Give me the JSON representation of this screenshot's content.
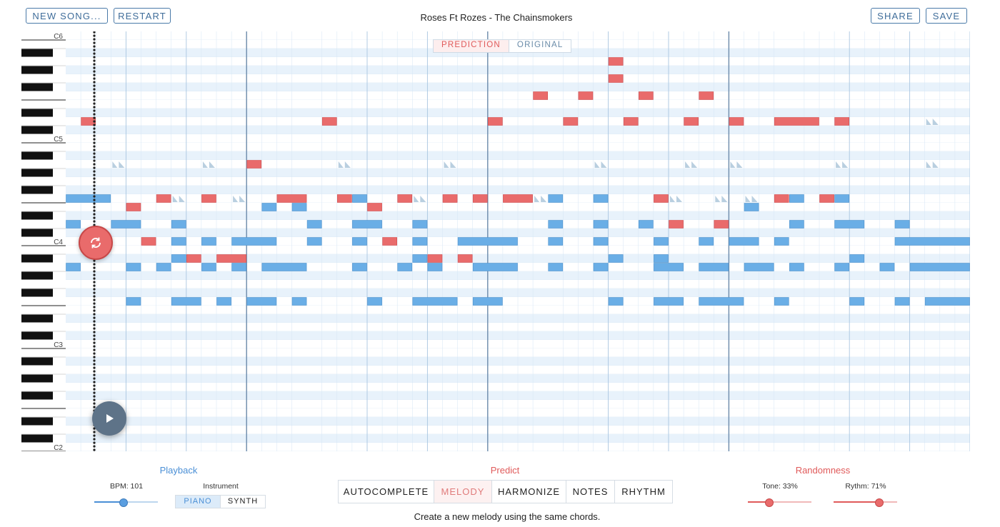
{
  "toolbar": {
    "new_song_label": "NEW SONG...",
    "restart_label": "RESTART",
    "share_label": "SHARE",
    "save_label": "SAVE"
  },
  "song_title": "Roses Ft Rozes - The Chainsmokers",
  "view_toggle": {
    "prediction_label": "PREDICTION",
    "original_label": "ORIGINAL",
    "selected": "PREDICTION"
  },
  "piano_roll": {
    "octave_labels": [
      "C6",
      "C5",
      "C4",
      "C3",
      "C2"
    ],
    "top_pitch": "C6",
    "bottom_pitch": "C2",
    "bars_visible": 7,
    "steps_per_bar": 16,
    "colors": {
      "prediction": "#e96b6b",
      "original": "#6aaee6",
      "ghost": "#b9cfe0",
      "light_row": "#e8f2fb",
      "white_row": "#ffffff",
      "bar_line": "#6d8bab",
      "beat_line": "#aac6e0"
    },
    "prediction_notes": [
      {
        "pitch": 74,
        "step": 1,
        "len": 1
      },
      {
        "pitch": 74,
        "step": 17,
        "len": 1
      },
      {
        "pitch": 74,
        "step": 28,
        "len": 1
      },
      {
        "pitch": 74,
        "step": 33,
        "len": 1
      },
      {
        "pitch": 74,
        "step": 37,
        "len": 1
      },
      {
        "pitch": 74,
        "step": 41,
        "len": 1
      },
      {
        "pitch": 74,
        "step": 44,
        "len": 1
      },
      {
        "pitch": 74,
        "step": 47,
        "len": 3
      },
      {
        "pitch": 74,
        "step": 51,
        "len": 1
      },
      {
        "pitch": 83,
        "step": 31,
        "len": 1
      },
      {
        "pitch": 81,
        "step": 36,
        "len": 1
      },
      {
        "pitch": 79,
        "step": 36,
        "len": 1
      },
      {
        "pitch": 77,
        "step": 31,
        "len": 1
      },
      {
        "pitch": 77,
        "step": 34,
        "len": 1
      },
      {
        "pitch": 77,
        "step": 38,
        "len": 1
      },
      {
        "pitch": 77,
        "step": 42,
        "len": 1
      },
      {
        "pitch": 69,
        "step": 12,
        "len": 1
      },
      {
        "pitch": 65,
        "step": 6,
        "len": 1
      },
      {
        "pitch": 65,
        "step": 9,
        "len": 1
      },
      {
        "pitch": 65,
        "step": 14,
        "len": 2
      },
      {
        "pitch": 65,
        "step": 18,
        "len": 1
      },
      {
        "pitch": 65,
        "step": 22,
        "len": 1
      },
      {
        "pitch": 65,
        "step": 25,
        "len": 1
      },
      {
        "pitch": 65,
        "step": 27,
        "len": 1
      },
      {
        "pitch": 65,
        "step": 29,
        "len": 2
      },
      {
        "pitch": 65,
        "step": 39,
        "len": 1
      },
      {
        "pitch": 65,
        "step": 47,
        "len": 1
      },
      {
        "pitch": 65,
        "step": 50,
        "len": 1
      },
      {
        "pitch": 64,
        "step": 4,
        "len": 1
      },
      {
        "pitch": 64,
        "step": 20,
        "len": 1
      },
      {
        "pitch": 62,
        "step": 40,
        "len": 1
      },
      {
        "pitch": 62,
        "step": 43,
        "len": 1
      },
      {
        "pitch": 60,
        "step": 5,
        "len": 1
      },
      {
        "pitch": 60,
        "step": 21,
        "len": 1
      },
      {
        "pitch": 58,
        "step": 8,
        "len": 1
      },
      {
        "pitch": 58,
        "step": 10,
        "len": 2
      },
      {
        "pitch": 58,
        "step": 24,
        "len": 1
      },
      {
        "pitch": 58,
        "step": 26,
        "len": 1
      }
    ],
    "original_notes": [
      {
        "pitch": 65,
        "step": 0,
        "len": 3
      },
      {
        "pitch": 65,
        "step": 19,
        "len": 1
      },
      {
        "pitch": 65,
        "step": 32,
        "len": 1
      },
      {
        "pitch": 65,
        "step": 35,
        "len": 1
      },
      {
        "pitch": 65,
        "step": 48,
        "len": 1
      },
      {
        "pitch": 65,
        "step": 51,
        "len": 1
      },
      {
        "pitch": 64,
        "step": 13,
        "len": 1
      },
      {
        "pitch": 64,
        "step": 15,
        "len": 1
      },
      {
        "pitch": 64,
        "step": 45,
        "len": 1
      },
      {
        "pitch": 62,
        "step": 0,
        "len": 1
      },
      {
        "pitch": 62,
        "step": 3,
        "len": 2
      },
      {
        "pitch": 62,
        "step": 7,
        "len": 1
      },
      {
        "pitch": 62,
        "step": 16,
        "len": 1
      },
      {
        "pitch": 62,
        "step": 19,
        "len": 2
      },
      {
        "pitch": 62,
        "step": 23,
        "len": 1
      },
      {
        "pitch": 62,
        "step": 32,
        "len": 1
      },
      {
        "pitch": 62,
        "step": 35,
        "len": 1
      },
      {
        "pitch": 62,
        "step": 38,
        "len": 1
      },
      {
        "pitch": 62,
        "step": 48,
        "len": 1
      },
      {
        "pitch": 62,
        "step": 51,
        "len": 2
      },
      {
        "pitch": 62,
        "step": 55,
        "len": 1
      },
      {
        "pitch": 60,
        "step": 7,
        "len": 1
      },
      {
        "pitch": 60,
        "step": 9,
        "len": 1
      },
      {
        "pitch": 60,
        "step": 11,
        "len": 3
      },
      {
        "pitch": 60,
        "step": 16,
        "len": 1
      },
      {
        "pitch": 60,
        "step": 19,
        "len": 1
      },
      {
        "pitch": 60,
        "step": 23,
        "len": 1
      },
      {
        "pitch": 60,
        "step": 26,
        "len": 4
      },
      {
        "pitch": 60,
        "step": 32,
        "len": 1
      },
      {
        "pitch": 60,
        "step": 35,
        "len": 1
      },
      {
        "pitch": 60,
        "step": 39,
        "len": 1
      },
      {
        "pitch": 60,
        "step": 42,
        "len": 1
      },
      {
        "pitch": 60,
        "step": 44,
        "len": 2
      },
      {
        "pitch": 60,
        "step": 47,
        "len": 1
      },
      {
        "pitch": 60,
        "step": 55,
        "len": 5
      },
      {
        "pitch": 58,
        "step": 7,
        "len": 1
      },
      {
        "pitch": 58,
        "step": 23,
        "len": 1
      },
      {
        "pitch": 58,
        "step": 36,
        "len": 1
      },
      {
        "pitch": 58,
        "step": 39,
        "len": 1
      },
      {
        "pitch": 58,
        "step": 52,
        "len": 1
      },
      {
        "pitch": 57,
        "step": 0,
        "len": 1
      },
      {
        "pitch": 57,
        "step": 4,
        "len": 1
      },
      {
        "pitch": 57,
        "step": 6,
        "len": 1
      },
      {
        "pitch": 57,
        "step": 9,
        "len": 1
      },
      {
        "pitch": 57,
        "step": 11,
        "len": 1
      },
      {
        "pitch": 57,
        "step": 13,
        "len": 3
      },
      {
        "pitch": 57,
        "step": 19,
        "len": 1
      },
      {
        "pitch": 57,
        "step": 22,
        "len": 1
      },
      {
        "pitch": 57,
        "step": 24,
        "len": 1
      },
      {
        "pitch": 57,
        "step": 27,
        "len": 3
      },
      {
        "pitch": 57,
        "step": 32,
        "len": 1
      },
      {
        "pitch": 57,
        "step": 35,
        "len": 1
      },
      {
        "pitch": 57,
        "step": 39,
        "len": 2
      },
      {
        "pitch": 57,
        "step": 42,
        "len": 2
      },
      {
        "pitch": 57,
        "step": 45,
        "len": 2
      },
      {
        "pitch": 57,
        "step": 48,
        "len": 1
      },
      {
        "pitch": 57,
        "step": 51,
        "len": 1
      },
      {
        "pitch": 57,
        "step": 54,
        "len": 1
      },
      {
        "pitch": 57,
        "step": 56,
        "len": 4
      },
      {
        "pitch": 53,
        "step": 4,
        "len": 1
      },
      {
        "pitch": 53,
        "step": 7,
        "len": 2
      },
      {
        "pitch": 53,
        "step": 10,
        "len": 1
      },
      {
        "pitch": 53,
        "step": 12,
        "len": 2
      },
      {
        "pitch": 53,
        "step": 15,
        "len": 1
      },
      {
        "pitch": 53,
        "step": 20,
        "len": 1
      },
      {
        "pitch": 53,
        "step": 23,
        "len": 3
      },
      {
        "pitch": 53,
        "step": 27,
        "len": 2
      },
      {
        "pitch": 53,
        "step": 36,
        "len": 1
      },
      {
        "pitch": 53,
        "step": 39,
        "len": 2
      },
      {
        "pitch": 53,
        "step": 42,
        "len": 3
      },
      {
        "pitch": 53,
        "step": 47,
        "len": 1
      },
      {
        "pitch": 53,
        "step": 52,
        "len": 1
      },
      {
        "pitch": 53,
        "step": 55,
        "len": 1
      },
      {
        "pitch": 53,
        "step": 57,
        "len": 3
      }
    ],
    "ghost_notes": [
      {
        "pitch": 69,
        "steps": [
          3,
          9,
          18,
          25,
          35,
          41,
          44,
          51,
          57
        ]
      },
      {
        "pitch": 65,
        "steps": [
          7,
          11,
          23,
          31,
          40,
          43,
          45
        ]
      },
      {
        "pitch": 74,
        "steps": [
          57
        ]
      }
    ]
  },
  "playback": {
    "title": "Playback",
    "bpm_label": "BPM: 101",
    "bpm_fraction": 0.45,
    "instrument_label": "Instrument",
    "instrument_options": [
      "PIANO",
      "SYNTH"
    ],
    "instrument_selected": "PIANO"
  },
  "predict": {
    "title": "Predict",
    "tabs": [
      "AUTOCOMPLETE",
      "MELODY",
      "HARMONIZE",
      "NOTES",
      "RHYTHM"
    ],
    "selected": "MELODY",
    "description": "Create a new melody using the same chords."
  },
  "randomness": {
    "title": "Randomness",
    "tone_label": "Tone: 33%",
    "tone_value": 0.33,
    "rhythm_label": "Rythm: 71%",
    "rhythm_value": 0.71
  }
}
